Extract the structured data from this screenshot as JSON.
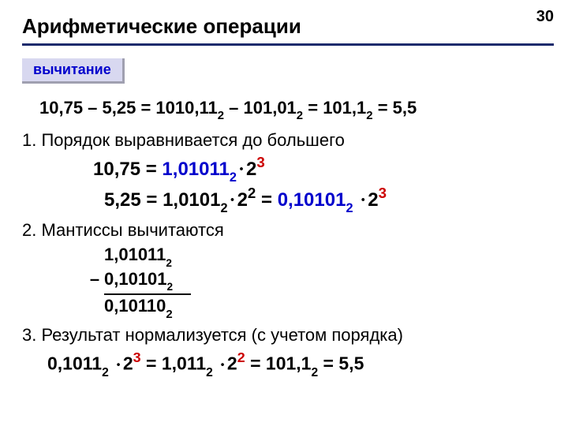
{
  "page_number": "30",
  "title": "Арифметические операции",
  "subtitle": "вычитание",
  "colors": {
    "title_underline": "#1a2a6c",
    "badge_bg": "#d8d8f0",
    "badge_text": "#0000cc",
    "blue": "#0000cc",
    "red": "#cc0000",
    "text": "#000000"
  },
  "line0": {
    "a": "10,75 – 5,25  = 1010,11",
    "b": " – 101,01",
    "c": " = 101,1",
    "d": " = 5,5"
  },
  "steps": {
    "s1": "1.  Порядок выравнивается до большего",
    "s2": "2.   Мантиссы вычитаются",
    "s3": "3.  Результат нормализуется (с учетом порядка)"
  },
  "eq1": {
    "lhs": "10,75 = ",
    "mantissa": "1,01011",
    "base": "2",
    "exp": "3"
  },
  "eq2": {
    "lhs": " 5,25 = 1,0101",
    "mid_base": "2",
    "mid_exp": "2",
    "eq": " = ",
    "mantissa": "0,10101",
    "base": "2",
    "exp": "3"
  },
  "subtract": {
    "top": "1,01011",
    "bot": "0,10101",
    "res": "0,10110"
  },
  "final": {
    "a": "0,1011",
    "a_base": "2",
    "a_exp": "3",
    "b": " = 1,011",
    "b_base": "2",
    "b_exp": "2",
    "c": " = 101,1",
    "d": " = 5,5"
  },
  "sub2": "2",
  "dot": "·"
}
